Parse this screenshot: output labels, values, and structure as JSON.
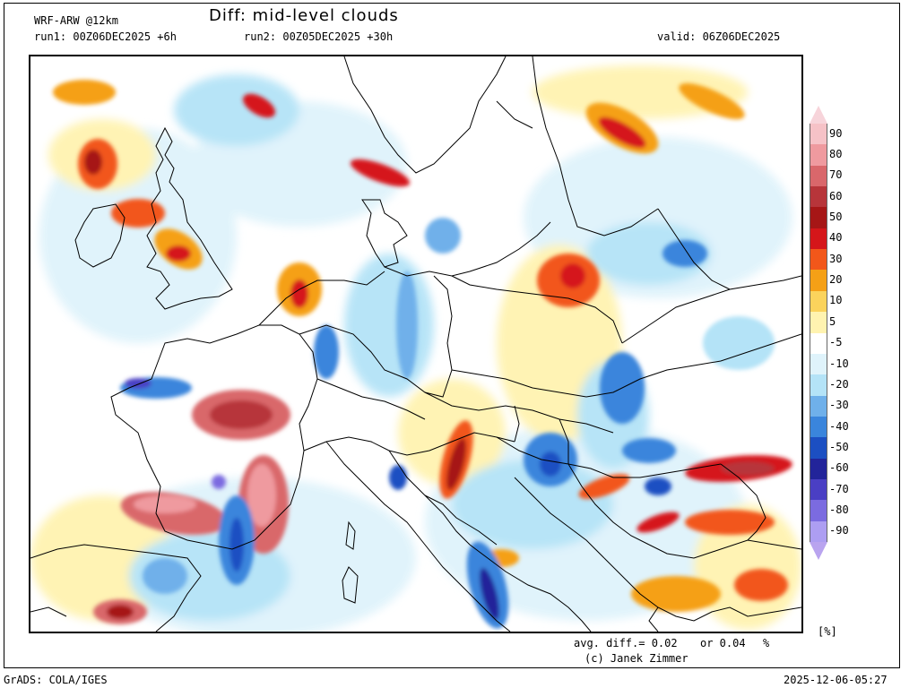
{
  "header": {
    "model": "WRF-ARW @12km",
    "title": "Diff: mid-level clouds",
    "run1": "run1: 00Z06DEC2025 +6h",
    "run2": "run2: 00Z05DEC2025 +30h",
    "valid": "valid: 06Z06DEC2025"
  },
  "footer": {
    "avg_diff": "avg. diff.= 0.02",
    "or_text": "or 0.04",
    "pct": "%",
    "credit": "(c) Janek Zimmer",
    "grads": "GrADS: COLA/IGES",
    "timestamp": "2025-12-06-05:27",
    "unit": "[%]"
  },
  "colorbar": {
    "top_color": "#f7d4da",
    "bottom_color": "#b9a4ef",
    "items": [
      {
        "label": "90",
        "color": "#f6c2c7"
      },
      {
        "label": "80",
        "color": "#ef9a9f"
      },
      {
        "label": "70",
        "color": "#d9676b"
      },
      {
        "label": "60",
        "color": "#b7353a"
      },
      {
        "label": "50",
        "color": "#a61616"
      },
      {
        "label": "40",
        "color": "#d5161a"
      },
      {
        "label": "30",
        "color": "#f2571a"
      },
      {
        "label": "20",
        "color": "#f5a016"
      },
      {
        "label": "10",
        "color": "#fbd35c"
      },
      {
        "label": "5",
        "color": "#fff3b0"
      },
      {
        "label": "-5",
        "color": "#ffffff"
      },
      {
        "label": "-10",
        "color": "#dff3fb"
      },
      {
        "label": "-20",
        "color": "#b4e3f7"
      },
      {
        "label": "-30",
        "color": "#6fb0ea"
      },
      {
        "label": "-40",
        "color": "#3a85dc"
      },
      {
        "label": "-50",
        "color": "#1c4fc2"
      },
      {
        "label": "-60",
        "color": "#22249a"
      },
      {
        "label": "-70",
        "color": "#4a3fc4"
      },
      {
        "label": "-80",
        "color": "#7b6be0"
      },
      {
        "label": "-90",
        "color": "#ad9ef2"
      }
    ]
  }
}
